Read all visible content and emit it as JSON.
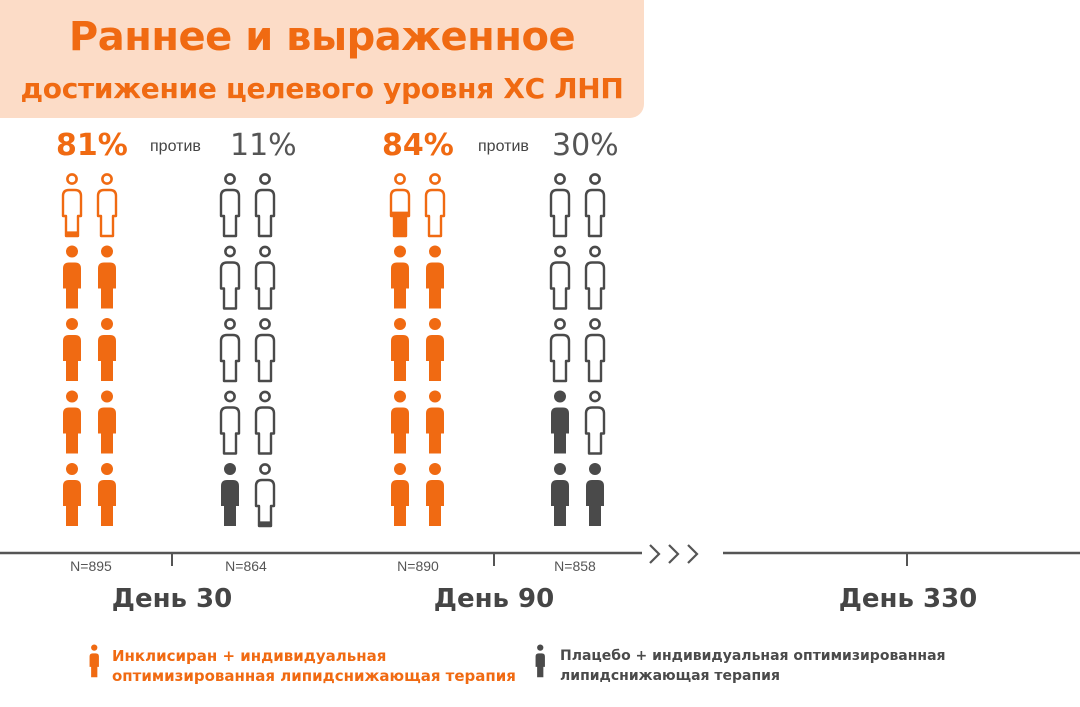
{
  "title": {
    "line1": "Раннее и выраженное",
    "line2": "достижение целевого уровня ХС ЛНП"
  },
  "colors": {
    "treatment": "#f06a12",
    "placebo": "#4a4a4a",
    "title_bg": "#fcdcc7"
  },
  "chart_data": {
    "type": "pictogram",
    "icon": "person-icon",
    "icons_per_group": 10,
    "vs_label": "против",
    "groups": [
      {
        "day": "День 30",
        "series": "treatment",
        "percent_label": "81%",
        "value": 81,
        "n": "N=895"
      },
      {
        "day": "День 30",
        "series": "placebo",
        "percent_label": "11%",
        "value": 11,
        "n": "N=864"
      },
      {
        "day": "День 90",
        "series": "treatment",
        "percent_label": "84%",
        "value": 84,
        "n": "N=890"
      },
      {
        "day": "День 90",
        "series": "placebo",
        "percent_label": "30%",
        "value": 30,
        "n": "N=858"
      }
    ],
    "timeline": [
      "День 30",
      "День 90",
      "День 330"
    ],
    "timeline_break": "›››"
  },
  "legend": {
    "treatment_line1": "Инклисиран + индивидуальная",
    "treatment_line2": "оптимизированная липидснижающая терапия",
    "placebo_line1": "Плацебо + индивидуальная оптимизированная",
    "placebo_line2": "липидснижающая терапия"
  }
}
